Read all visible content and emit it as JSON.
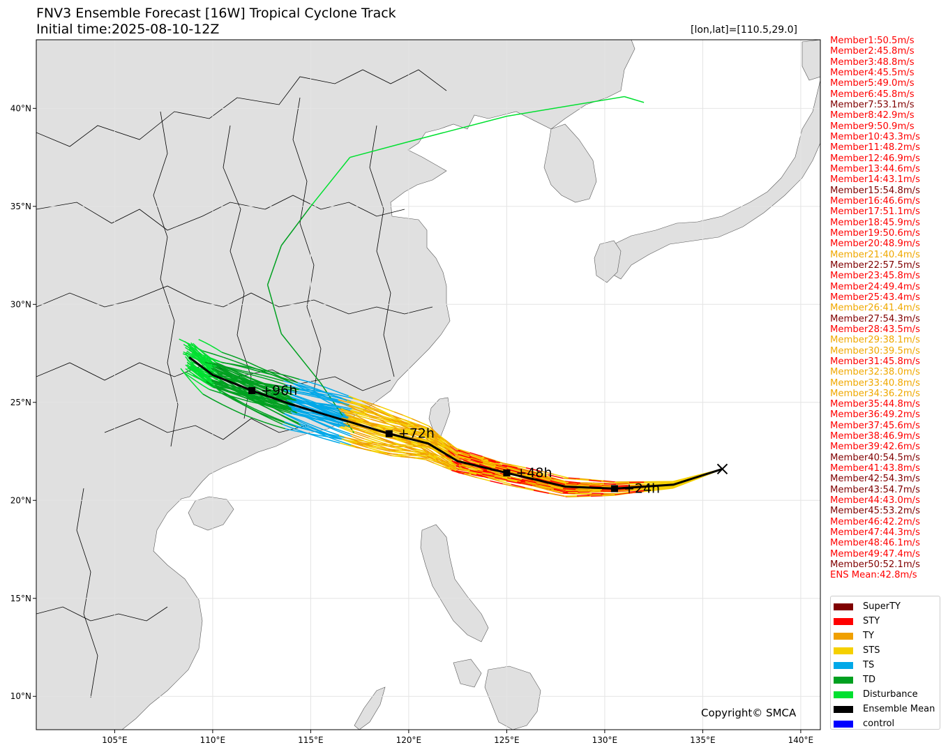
{
  "title": {
    "line1": "FNV3 Ensemble Forecast [16W] Tropical Cyclone Track",
    "line2": "Initial time:2025-08-10-12Z",
    "coordinates": "[lon,lat]=[110.5,29.0]"
  },
  "map": {
    "lon_range": [
      101,
      141
    ],
    "lat_range": [
      8.3,
      43.5
    ],
    "lon_ticks": [
      {
        "value": 105,
        "label": "105°E"
      },
      {
        "value": 110,
        "label": "110°E"
      },
      {
        "value": 115,
        "label": "115°E"
      },
      {
        "value": 120,
        "label": "120°E"
      },
      {
        "value": 125,
        "label": "125°E"
      },
      {
        "value": 130,
        "label": "130°E"
      },
      {
        "value": 135,
        "label": "135°E"
      },
      {
        "value": 140,
        "label": "140°E"
      }
    ],
    "lat_ticks": [
      {
        "value": 10,
        "label": "10°N"
      },
      {
        "value": 15,
        "label": "15°N"
      },
      {
        "value": 20,
        "label": "20°N"
      },
      {
        "value": 25,
        "label": "25°N"
      },
      {
        "value": 30,
        "label": "30°N"
      },
      {
        "value": 35,
        "label": "35°N"
      },
      {
        "value": 40,
        "label": "40°N"
      }
    ],
    "land_color": "#e0e0e0",
    "ocean_color": "#ffffff"
  },
  "ensemble_mean": {
    "track": [
      [
        136.0,
        21.6
      ],
      [
        133.5,
        20.8
      ],
      [
        130.5,
        20.6
      ],
      [
        128.0,
        20.7
      ],
      [
        125.0,
        21.4
      ],
      [
        122.5,
        22.0
      ],
      [
        121.0,
        22.9
      ],
      [
        119.0,
        23.4
      ],
      [
        116.0,
        24.3
      ],
      [
        114.0,
        24.9
      ],
      [
        112.0,
        25.6
      ],
      [
        110.0,
        26.4
      ],
      [
        108.8,
        27.3
      ]
    ],
    "genesis": {
      "lon": 136.0,
      "lat": 21.6
    },
    "markers": [
      {
        "lon": 130.5,
        "lat": 20.6,
        "label": "+24h"
      },
      {
        "lon": 125.0,
        "lat": 21.4,
        "label": "+48h"
      },
      {
        "lon": 119.0,
        "lat": 23.4,
        "label": "+72h"
      },
      {
        "lon": 112.0,
        "lat": 25.6,
        "label": "+96h"
      }
    ]
  },
  "members": [
    {
      "label": "Member1:50.5m/s",
      "color": "#ff0000"
    },
    {
      "label": "Member2:45.8m/s",
      "color": "#ff0000"
    },
    {
      "label": "Member3:48.8m/s",
      "color": "#ff0000"
    },
    {
      "label": "Member4:45.5m/s",
      "color": "#ff0000"
    },
    {
      "label": "Member5:49.0m/s",
      "color": "#ff0000"
    },
    {
      "label": "Member6:45.8m/s",
      "color": "#ff0000"
    },
    {
      "label": "Member7:53.1m/s",
      "color": "#800000"
    },
    {
      "label": "Member8:42.9m/s",
      "color": "#ff0000"
    },
    {
      "label": "Member9:50.9m/s",
      "color": "#ff0000"
    },
    {
      "label": "Member10:43.3m/s",
      "color": "#ff0000"
    },
    {
      "label": "Member11:48.2m/s",
      "color": "#ff0000"
    },
    {
      "label": "Member12:46.9m/s",
      "color": "#ff0000"
    },
    {
      "label": "Member13:44.6m/s",
      "color": "#ff0000"
    },
    {
      "label": "Member14:43.1m/s",
      "color": "#ff0000"
    },
    {
      "label": "Member15:54.8m/s",
      "color": "#800000"
    },
    {
      "label": "Member16:46.6m/s",
      "color": "#ff0000"
    },
    {
      "label": "Member17:51.1m/s",
      "color": "#ff0000"
    },
    {
      "label": "Member18:45.9m/s",
      "color": "#ff0000"
    },
    {
      "label": "Member19:50.6m/s",
      "color": "#ff0000"
    },
    {
      "label": "Member20:48.9m/s",
      "color": "#ff0000"
    },
    {
      "label": "Member21:40.4m/s",
      "color": "#f0a800"
    },
    {
      "label": "Member22:57.5m/s",
      "color": "#800000"
    },
    {
      "label": "Member23:45.8m/s",
      "color": "#ff0000"
    },
    {
      "label": "Member24:49.4m/s",
      "color": "#ff0000"
    },
    {
      "label": "Member25:43.4m/s",
      "color": "#ff0000"
    },
    {
      "label": "Member26:41.4m/s",
      "color": "#f0a800"
    },
    {
      "label": "Member27:54.3m/s",
      "color": "#800000"
    },
    {
      "label": "Member28:43.5m/s",
      "color": "#ff0000"
    },
    {
      "label": "Member29:38.1m/s",
      "color": "#f0a800"
    },
    {
      "label": "Member30:39.5m/s",
      "color": "#f0a800"
    },
    {
      "label": "Member31:45.8m/s",
      "color": "#ff0000"
    },
    {
      "label": "Member32:38.0m/s",
      "color": "#f0a800"
    },
    {
      "label": "Member33:40.8m/s",
      "color": "#f0a800"
    },
    {
      "label": "Member34:36.2m/s",
      "color": "#f0a800"
    },
    {
      "label": "Member35:44.8m/s",
      "color": "#ff0000"
    },
    {
      "label": "Member36:49.2m/s",
      "color": "#ff0000"
    },
    {
      "label": "Member37:45.6m/s",
      "color": "#ff0000"
    },
    {
      "label": "Member38:46.9m/s",
      "color": "#ff0000"
    },
    {
      "label": "Member39:42.6m/s",
      "color": "#ff0000"
    },
    {
      "label": "Member40:54.5m/s",
      "color": "#800000"
    },
    {
      "label": "Member41:43.8m/s",
      "color": "#ff0000"
    },
    {
      "label": "Member42:54.3m/s",
      "color": "#800000"
    },
    {
      "label": "Member43:54.7m/s",
      "color": "#800000"
    },
    {
      "label": "Member44:43.0m/s",
      "color": "#ff0000"
    },
    {
      "label": "Member45:53.2m/s",
      "color": "#800000"
    },
    {
      "label": "Member46:42.2m/s",
      "color": "#ff0000"
    },
    {
      "label": "Member47:44.3m/s",
      "color": "#ff0000"
    },
    {
      "label": "Member48:46.1m/s",
      "color": "#ff0000"
    },
    {
      "label": "Member49:47.4m/s",
      "color": "#ff0000"
    },
    {
      "label": "Member50:52.1m/s",
      "color": "#800000"
    },
    {
      "label": "ENS Mean:42.8m/s",
      "color": "#ff0000"
    }
  ],
  "legend": [
    {
      "label": "SuperTY",
      "color": "#7f0000"
    },
    {
      "label": "STY",
      "color": "#ff0000"
    },
    {
      "label": "TY",
      "color": "#f0a000"
    },
    {
      "label": "STS",
      "color": "#f5d000"
    },
    {
      "label": "TS",
      "color": "#00a8e8"
    },
    {
      "label": "TD",
      "color": "#00a020"
    },
    {
      "label": "Disturbance",
      "color": "#00e030"
    },
    {
      "label": "Ensemble Mean",
      "color": "#000000"
    },
    {
      "label": "control",
      "color": "#0000ff"
    }
  ],
  "copyright": "Copyright© SMCA"
}
